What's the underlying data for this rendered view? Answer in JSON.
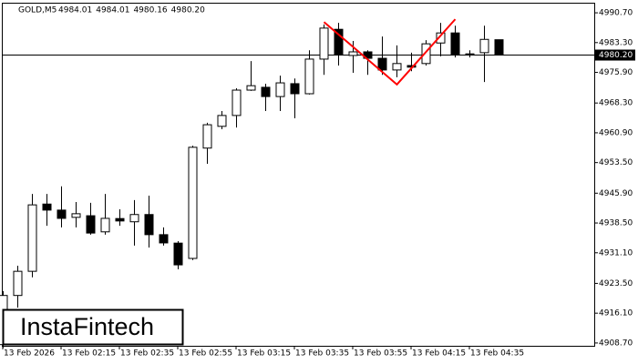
{
  "chart_data": {
    "type": "candlestick",
    "header": "GOLD,M5",
    "header_values": [
      "4984.01",
      "4984.01",
      "4980.16",
      "4980.20"
    ],
    "watermark": "InstaFintech",
    "categories": [
      "13 Feb 2026",
      null,
      null,
      null,
      "13 Feb 02:15",
      null,
      null,
      null,
      "13 Feb 02:35",
      null,
      null,
      null,
      "13 Feb 02:55",
      null,
      null,
      null,
      "13 Feb 03:15",
      null,
      null,
      null,
      "13 Feb 03:35",
      null,
      null,
      null,
      "13 Feb 03:55",
      null,
      null,
      null,
      "13 Feb 04:15",
      null,
      null,
      null,
      "13 Feb 04:35",
      null,
      null
    ],
    "open": [
      4908.3,
      4920.5,
      4926.5,
      4943.2,
      4941.7,
      4939.9,
      4940.3,
      4936.3,
      4939.6,
      4938.8,
      4940.6,
      4935.6,
      4933.5,
      4929.7,
      4957.1,
      4962.5,
      4965.2,
      4971.5,
      4972.2,
      4969.9,
      4973.1,
      4970.6,
      4979.2,
      4986.6,
      4980.1,
      4981.0,
      4979.4,
      4976.5,
      4977.6,
      4978.1,
      4983.2,
      4985.7,
      4980.5,
      4980.8,
      4984.01
    ],
    "high": [
      4921.6,
      4927.9,
      4945.7,
      4945.7,
      4947.6,
      4943.7,
      4943.5,
      4945.7,
      4941.9,
      4944.2,
      4945.3,
      4937.4,
      4934.0,
      4957.7,
      4963.4,
      4966.3,
      4971.95,
      4978.7,
      4973.1,
      4975.1,
      4974.4,
      4981.4,
      4987.8,
      4988.2,
      4983.7,
      4981.4,
      4984.8,
      4982.6,
      4980.8,
      4983.9,
      4988.2,
      4987.5,
      4981.4,
      4987.5,
      4984.01
    ],
    "low": [
      4907.5,
      4917.5,
      4925.0,
      4937.8,
      4937.4,
      4937.4,
      4935.6,
      4935.6,
      4937.8,
      4932.9,
      4932.4,
      4932.9,
      4927.0,
      4929.3,
      4953.2,
      4961.8,
      4962.2,
      4971.3,
      4966.3,
      4966.3,
      4964.5,
      4970.4,
      4975.3,
      4977.6,
      4975.8,
      4975.3,
      4975.3,
      4974.7,
      4976.2,
      4977.6,
      4979.9,
      4979.6,
      4979.6,
      4973.5,
      4980.16
    ],
    "close": [
      4920.5,
      4926.5,
      4943.0,
      4941.7,
      4939.65,
      4940.8,
      4936.0,
      4939.65,
      4939.0,
      4940.6,
      4935.6,
      4933.55,
      4928.1,
      4957.3,
      4962.9,
      4965.2,
      4971.5,
      4972.6,
      4969.9,
      4973.3,
      4970.6,
      4979.2,
      4986.9,
      4980.3,
      4981.0,
      4979.4,
      4976.5,
      4978.1,
      4977.2,
      4983.0,
      4985.7,
      4980.3,
      4980.3,
      4984.1,
      4980.2
    ],
    "up_color": "#ffffff",
    "down_color": "#000000",
    "current_price": {
      "value": 4980.2,
      "label": "4980.20"
    },
    "pattern": {
      "color": "#ff0000",
      "x": [
        22,
        27,
        31
      ],
      "values": [
        4988.4,
        4972.9,
        4989.1
      ]
    },
    "ylim": [
      4908.0,
      4993.2
    ],
    "yticks": [
      {
        "value": 4990.7,
        "label": "4990.70"
      },
      {
        "value": 4983.3,
        "label": "4983.30"
      },
      {
        "value": 4975.9,
        "label": "4975.90"
      },
      {
        "value": 4968.3,
        "label": "4968.30"
      },
      {
        "value": 4960.9,
        "label": "4960.90"
      },
      {
        "value": 4953.5,
        "label": "4953.50"
      },
      {
        "value": 4945.9,
        "label": "4945.90"
      },
      {
        "value": 4938.5,
        "label": "4938.50"
      },
      {
        "value": 4931.1,
        "label": "4931.10"
      },
      {
        "value": 4923.5,
        "label": "4923.50"
      },
      {
        "value": 4916.1,
        "label": "4916.10"
      },
      {
        "value": 4908.7,
        "label": "4908.70"
      }
    ]
  }
}
